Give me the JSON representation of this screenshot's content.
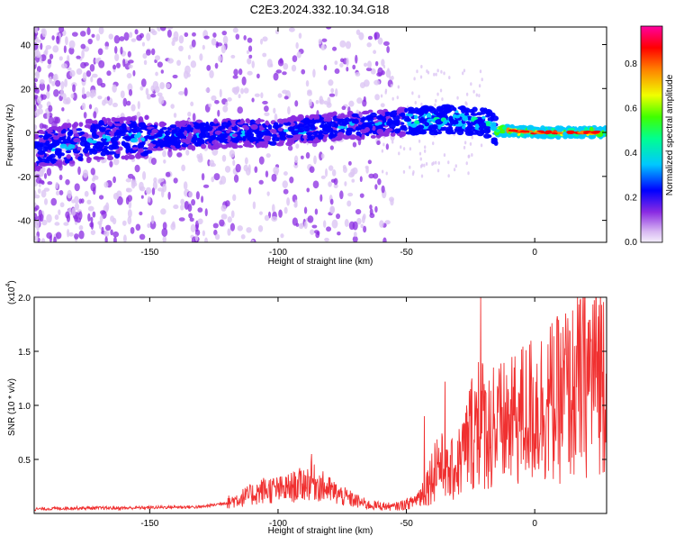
{
  "title": "C2E3.2024.332.10.34.G18",
  "colors": {
    "snr_line": "#f03030",
    "frame": "#000000",
    "colormap": [
      "#f4eefc",
      "#d8b8f2",
      "#8a2be2",
      "#0000ff",
      "#00c8ff",
      "#00ff90",
      "#40ff00",
      "#f0ff00",
      "#ff8000",
      "#ff0000",
      "#ff00a0"
    ]
  },
  "chart_data": [
    {
      "type": "heatmap",
      "name": "spectrogram",
      "xlabel": "Height of straight line (km)",
      "ylabel": "Frequency (Hz)",
      "xlim": [
        -195,
        28
      ],
      "ylim": [
        -50,
        48
      ],
      "x_ticks": [
        -150,
        -100,
        -50,
        0
      ],
      "x_tick_labels": [
        "-150",
        "-100",
        "-50",
        "0"
      ],
      "y_ticks": [
        -40,
        -20,
        0,
        20,
        40
      ],
      "y_tick_labels": [
        "-40",
        "-20",
        "0",
        "20",
        "40"
      ],
      "colorbar": {
        "label": "Normalized spectral amplitude",
        "range": [
          0,
          0.97
        ],
        "ticks": [
          0.0,
          0.2,
          0.4,
          0.6,
          0.8
        ],
        "tick_labels": [
          "0.0",
          "0.2",
          "0.4",
          "0.6",
          "0.8"
        ]
      },
      "ridge": {
        "description": "dominant frequency band centre",
        "points": [
          [
            -195,
            -8
          ],
          [
            -170,
            -3
          ],
          [
            -150,
            -2
          ],
          [
            -130,
            -1
          ],
          [
            -100,
            0
          ],
          [
            -75,
            3
          ],
          [
            -50,
            5
          ],
          [
            -35,
            6
          ],
          [
            -20,
            5
          ],
          [
            -15,
            1
          ],
          [
            0,
            0
          ],
          [
            28,
            0
          ]
        ]
      }
    },
    {
      "type": "line",
      "name": "snr",
      "xlabel": "Height of straight line (km)",
      "ylabel": "SNR (10 * v/v)",
      "y_multiplier_label": "(x10",
      "y_multiplier_exp": "4",
      "y_multiplier_close": ")",
      "xlim": [
        -195,
        28
      ],
      "ylim": [
        0,
        2.0
      ],
      "x_ticks": [
        -150,
        -100,
        -50,
        0
      ],
      "x_tick_labels": [
        "-150",
        "-100",
        "-50",
        "0"
      ],
      "y_ticks": [
        0.5,
        1.0,
        1.5,
        2.0
      ],
      "y_tick_labels": [
        "0.5",
        "1.0",
        "1.5",
        "2.0"
      ],
      "series": [
        {
          "values_description": "SNR in units of 10^4",
          "points": [
            [
              -195,
              0.04
            ],
            [
              -180,
              0.05
            ],
            [
              -160,
              0.05
            ],
            [
              -140,
              0.06
            ],
            [
              -130,
              0.06
            ],
            [
              -120,
              0.1
            ],
            [
              -112,
              0.16
            ],
            [
              -105,
              0.22
            ],
            [
              -98,
              0.22
            ],
            [
              -92,
              0.26
            ],
            [
              -87,
              0.3
            ],
            [
              -82,
              0.24
            ],
            [
              -75,
              0.16
            ],
            [
              -65,
              0.08
            ],
            [
              -55,
              0.06
            ],
            [
              -48,
              0.1
            ],
            [
              -44,
              0.18
            ],
            [
              -40,
              0.35
            ],
            [
              -38,
              0.5
            ],
            [
              -34,
              0.35
            ],
            [
              -30,
              0.45
            ],
            [
              -27,
              0.6
            ],
            [
              -24,
              0.8
            ],
            [
              -21,
              0.85
            ],
            [
              -19,
              0.82
            ],
            [
              -16,
              0.7
            ],
            [
              -13,
              0.82
            ],
            [
              -10,
              0.8
            ],
            [
              -6,
              0.9
            ],
            [
              -2,
              0.95
            ],
            [
              2,
              1.0
            ],
            [
              6,
              1.03
            ],
            [
              10,
              1.05
            ],
            [
              14,
              1.1
            ],
            [
              18,
              1.2
            ],
            [
              22,
              1.3
            ],
            [
              26,
              1.4
            ],
            [
              28,
              1.42
            ]
          ],
          "spikes": [
            [
              -87,
              0.55
            ],
            [
              -43,
              0.9
            ],
            [
              -35,
              1.22
            ],
            [
              -25,
              1.15
            ],
            [
              -22,
              1.4
            ],
            [
              -21,
              2.0
            ],
            [
              -16,
              1.35
            ],
            [
              -11,
              1.28
            ],
            [
              -8,
              1.35
            ],
            [
              12,
              1.85
            ],
            [
              26,
              1.55
            ]
          ]
        }
      ]
    }
  ]
}
